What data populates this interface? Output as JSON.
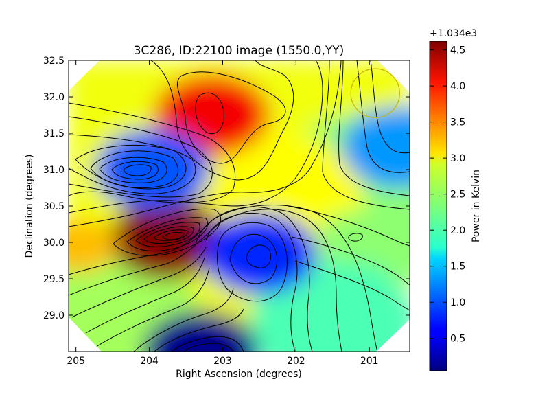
{
  "chart_data": {
    "type": "heatmap",
    "title": "3C286, ID:22100 image (1550.0,YY)",
    "xlabel": "Right Ascension (degrees)",
    "ylabel": "Declination (degrees)",
    "xlim": [
      205.1,
      200.45
    ],
    "ylim": [
      28.5,
      32.5
    ],
    "x_ticks": [
      "205",
      "204",
      "203",
      "202",
      "201"
    ],
    "x_tick_values": [
      205,
      204,
      203,
      202,
      201
    ],
    "y_ticks": [
      "29.0",
      "29.5",
      "30.0",
      "30.5",
      "31.0",
      "31.5",
      "32.0",
      "32.5"
    ],
    "y_tick_values": [
      29.0,
      29.5,
      30.0,
      30.5,
      31.0,
      31.5,
      32.0,
      32.5
    ],
    "colormap": "jet",
    "contours": "black",
    "features": [
      {
        "ra": 203.15,
        "dec": 31.75,
        "value": 4.1,
        "kind": "max"
      },
      {
        "ra": 203.75,
        "dec": 30.05,
        "value": 4.6,
        "kind": "max"
      },
      {
        "ra": 204.95,
        "dec": 29.95,
        "value": 3.2,
        "kind": "local"
      },
      {
        "ra": 203.95,
        "dec": 31.0,
        "value": 1.0,
        "kind": "min"
      },
      {
        "ra": 202.5,
        "dec": 29.85,
        "value": 0.8,
        "kind": "min"
      },
      {
        "ra": 203.3,
        "dec": 28.5,
        "value": 0.1,
        "kind": "min"
      },
      {
        "ra": 200.6,
        "dec": 31.3,
        "value": 1.3,
        "kind": "min"
      },
      {
        "ra": 201.2,
        "dec": 30.07,
        "value": 2.4,
        "kind": "local"
      }
    ],
    "beam_circle": {
      "ra": 200.92,
      "dec": 32.05,
      "radius_deg": 0.37,
      "color": "#c8b400"
    },
    "colorbar": {
      "label": "Power in Kelvin",
      "offset_text": "+1.034e3",
      "ticks": [
        "0.5",
        "1.0",
        "1.5",
        "2.0",
        "2.5",
        "3.0",
        "3.5",
        "4.0",
        "4.5"
      ],
      "tick_values": [
        0.5,
        1.0,
        1.5,
        2.0,
        2.5,
        3.0,
        3.5,
        4.0,
        4.5
      ],
      "range": [
        0.05,
        4.62
      ]
    }
  }
}
